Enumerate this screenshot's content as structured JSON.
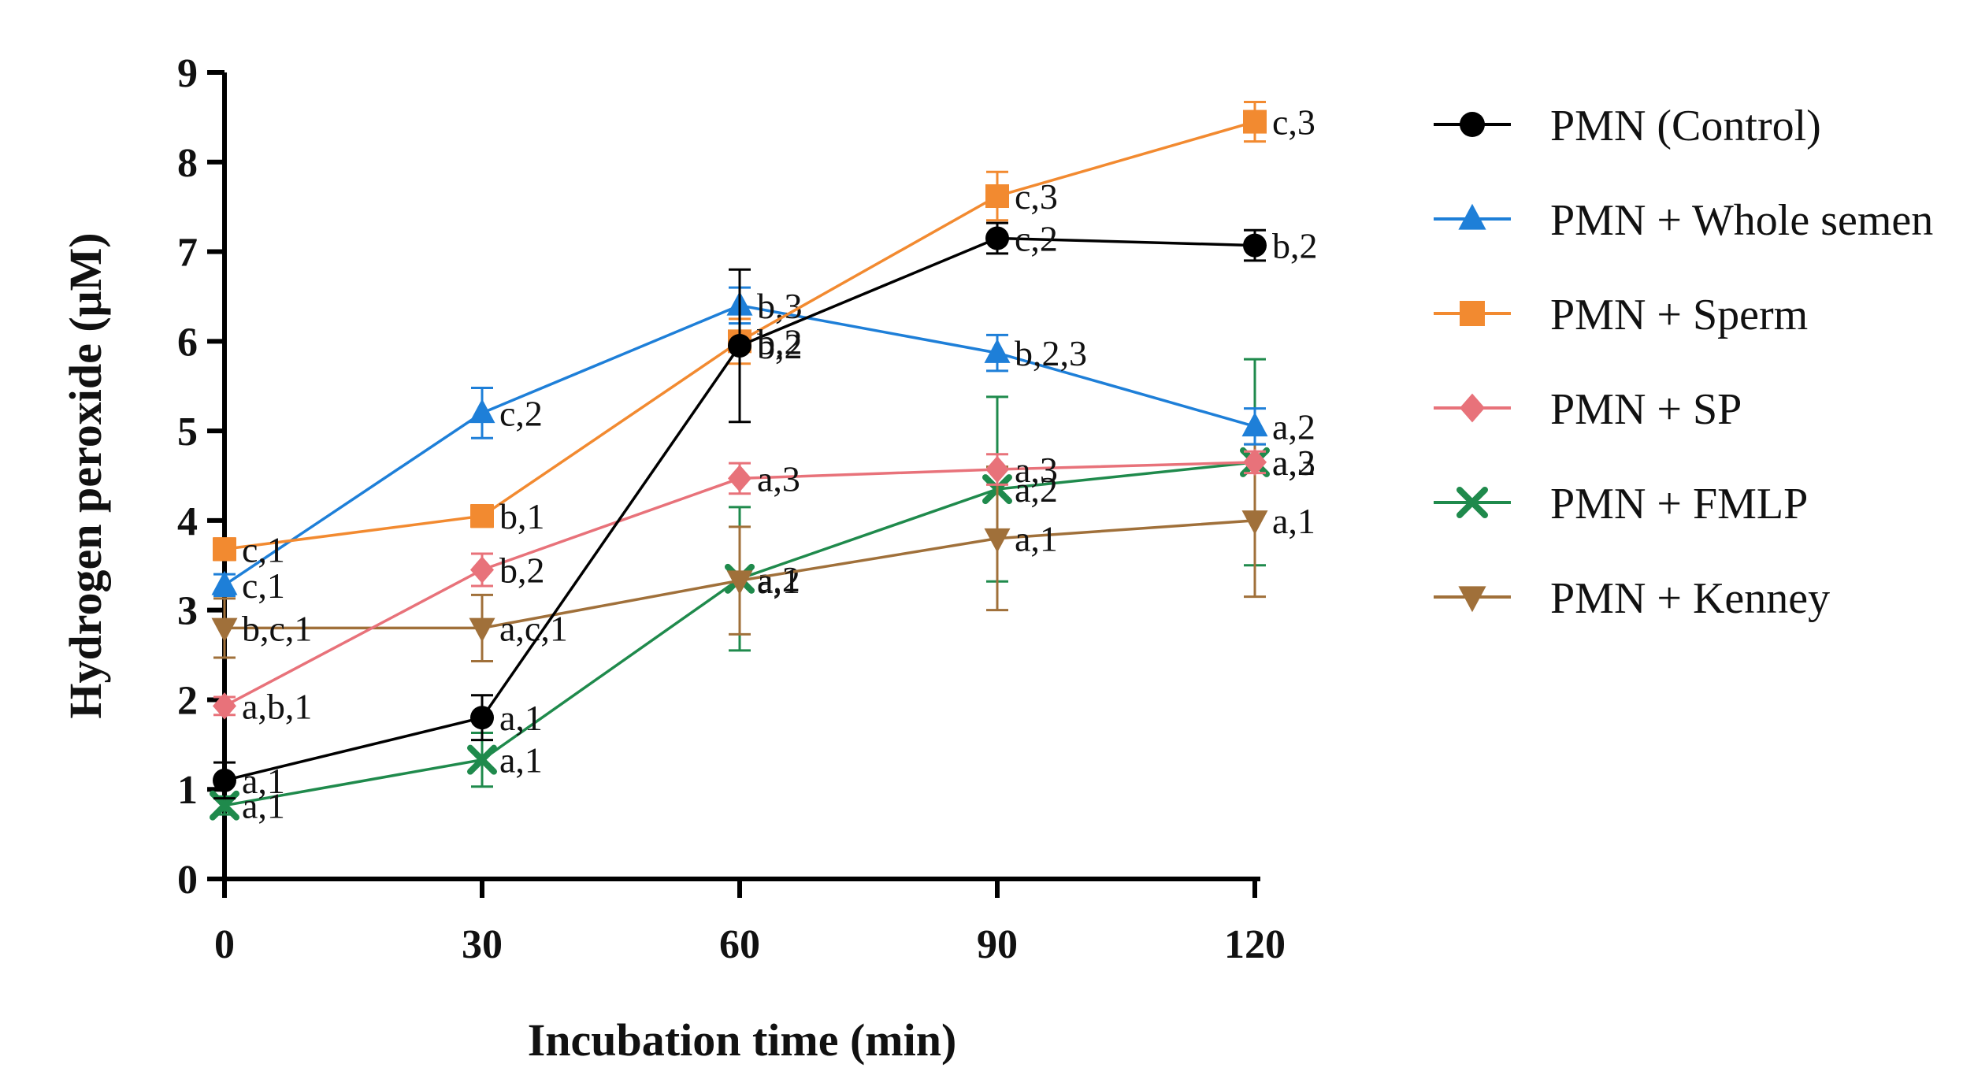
{
  "chart_data": {
    "type": "line",
    "xlabel": "Incubation time (min)",
    "ylabel": "Hydrogen peroxide (μM)",
    "x": [
      0,
      30,
      60,
      90,
      120
    ],
    "xticks": [
      "0",
      "30",
      "60",
      "90",
      "120"
    ],
    "yticks": [
      "0",
      "1",
      "2",
      "3",
      "4",
      "5",
      "6",
      "7",
      "8",
      "9"
    ],
    "xlim": [
      0,
      120
    ],
    "ylim": [
      0,
      9
    ],
    "grid": false,
    "legend_position": "right",
    "series": [
      {
        "name": "PMN (Control)",
        "color": "#000000",
        "marker": "circle",
        "values": [
          1.1,
          1.8,
          5.95,
          7.15,
          7.07
        ],
        "errors": [
          0.2,
          0.25,
          0.85,
          0.17,
          0.17
        ],
        "labels": [
          "a,1",
          "a,1",
          "b,2",
          "c,2",
          "b,2"
        ]
      },
      {
        "name": "PMN + Whole semen",
        "color": "#1E7FD8",
        "marker": "triangle-up",
        "values": [
          3.28,
          5.2,
          6.4,
          5.87,
          5.05
        ],
        "errors": [
          0.12,
          0.28,
          0.2,
          0.2,
          0.2
        ],
        "labels": [
          "c,1",
          "c,2",
          "b,3",
          "b,2,3",
          "a,2"
        ]
      },
      {
        "name": "PMN + Sperm",
        "color": "#F28A30",
        "marker": "square",
        "values": [
          3.68,
          4.05,
          6.0,
          7.62,
          8.45
        ],
        "errors": [
          0.12,
          0.12,
          0.25,
          0.27,
          0.22
        ],
        "labels": [
          "c,1",
          "b,1",
          "b,2",
          "c,3",
          "c,3"
        ]
      },
      {
        "name": "PMN + SP",
        "color": "#E8727A",
        "marker": "diamond",
        "values": [
          1.93,
          3.45,
          4.47,
          4.57,
          4.65
        ],
        "errors": [
          0.1,
          0.18,
          0.17,
          0.17,
          0.12
        ],
        "labels": [
          "a,b,1",
          "b,2",
          "a,3",
          "a,3",
          "a,3"
        ]
      },
      {
        "name": "PMN + FMLP",
        "color": "#1F8A4C",
        "marker": "x",
        "values": [
          0.82,
          1.33,
          3.35,
          4.35,
          4.65
        ],
        "errors": [
          0.1,
          0.3,
          0.8,
          1.03,
          1.15
        ],
        "labels": [
          "a,1",
          "a,1",
          "a,2",
          "a,2",
          "a,2"
        ]
      },
      {
        "name": "PMN + Kenney",
        "color": "#A0703A",
        "marker": "triangle-down",
        "values": [
          2.8,
          2.8,
          3.33,
          3.8,
          4.0
        ],
        "errors": [
          0.33,
          0.37,
          0.6,
          0.8,
          0.85
        ],
        "labels": [
          "b,c,1",
          "a,c,1",
          "a,1",
          "a,1",
          "a,1"
        ]
      }
    ]
  }
}
